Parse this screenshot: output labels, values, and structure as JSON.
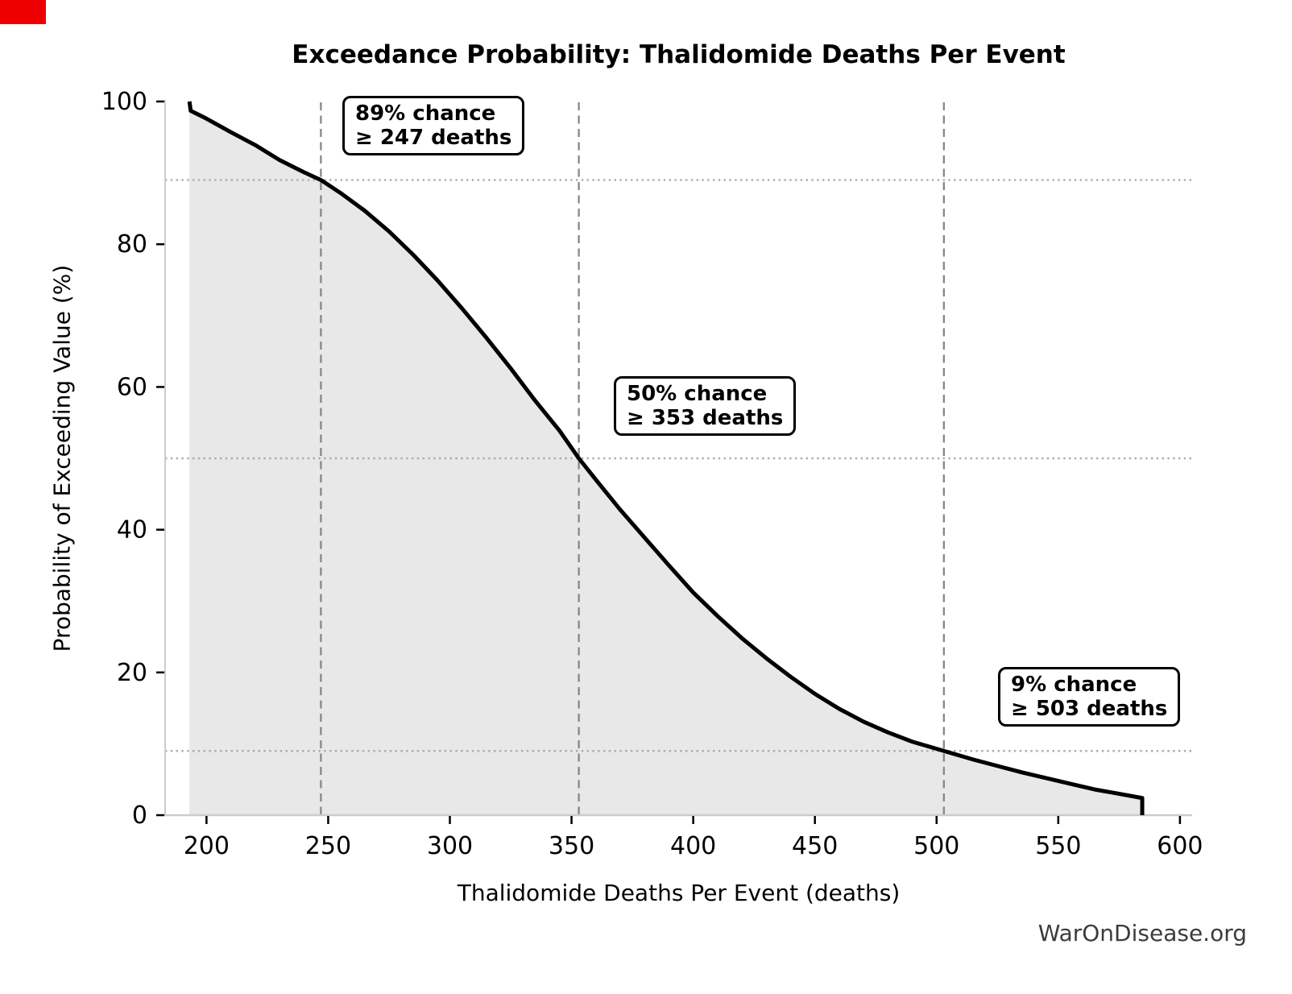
{
  "title": "Exceedance Probability: Thalidomide Deaths Per Event",
  "watermark": "WarOnDisease.org",
  "ui": {
    "action_marker_color": "#ee0000"
  },
  "chart_data": {
    "type": "line",
    "title": "Exceedance Probability: Thalidomide Deaths Per Event",
    "xlabel": "Thalidomide Deaths Per Event (deaths)",
    "ylabel": "Probability of Exceeding Value (%)",
    "xlim": [
      183,
      605
    ],
    "ylim": [
      0,
      100
    ],
    "x_ticks": [
      200,
      250,
      300,
      350,
      400,
      450,
      500,
      550,
      600
    ],
    "y_ticks": [
      0,
      20,
      40,
      60,
      80,
      100
    ],
    "grid": "reference lines only",
    "legend": "none",
    "series": [
      {
        "name": "exceedance-curve",
        "x": [
          193,
          193.5,
          200,
          210,
          220,
          230,
          240,
          247,
          255,
          265,
          275,
          285,
          295,
          305,
          315,
          325,
          335,
          345,
          353,
          360,
          370,
          380,
          390,
          400,
          410,
          420,
          430,
          440,
          450,
          460,
          470,
          480,
          490,
          503,
          515,
          525,
          535,
          545,
          555,
          565,
          575,
          584.5,
          584.5
        ],
        "y": [
          100,
          98.7,
          97.6,
          95.7,
          93.9,
          91.8,
          90.1,
          89.0,
          87.2,
          84.7,
          81.8,
          78.5,
          74.9,
          71.0,
          66.9,
          62.6,
          58.1,
          53.9,
          50.0,
          47.0,
          42.8,
          38.9,
          35.0,
          31.2,
          27.9,
          24.8,
          22.0,
          19.4,
          17.0,
          14.9,
          13.1,
          11.6,
          10.3,
          9.0,
          7.8,
          6.9,
          6.0,
          5.2,
          4.4,
          3.6,
          3.0,
          2.4,
          0
        ],
        "fill_under": true
      }
    ],
    "vlines": [
      247,
      353,
      503
    ],
    "hlines": [
      89,
      50,
      9
    ],
    "annotations": [
      {
        "line1": "89% chance",
        "line2": "≥ 247 deaths",
        "at_x": 247,
        "at_y": 89
      },
      {
        "line1": "50% chance",
        "line2": "≥ 353 deaths",
        "at_x": 353,
        "at_y": 50
      },
      {
        "line1": "9% chance",
        "line2": "≥ 503 deaths",
        "at_x": 503,
        "at_y": 9
      }
    ],
    "colors": {
      "curve": "#000000",
      "fill": "#e8e8e8",
      "vline": "#878787",
      "hline": "#ababab",
      "spine": "#cccccc",
      "tick": "#000000",
      "tick_label": "#000000"
    }
  }
}
